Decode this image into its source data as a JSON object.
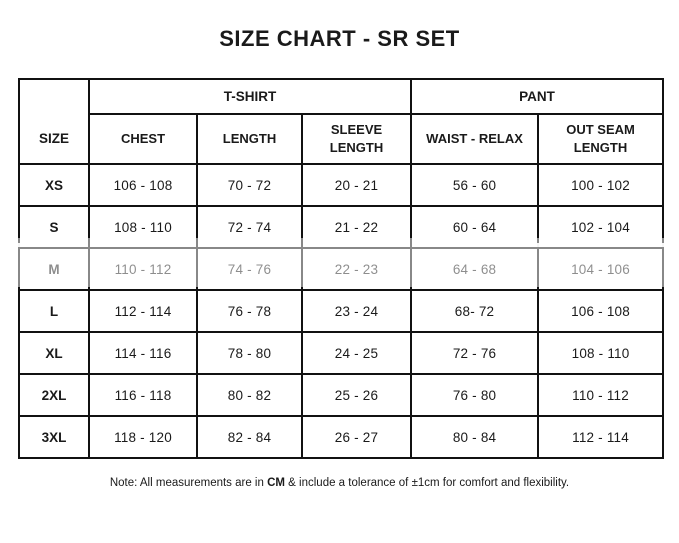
{
  "page": {
    "title": "SIZE CHART - SR SET"
  },
  "table": {
    "size_header": "SIZE",
    "col_groups": [
      {
        "label": "T-SHIRT",
        "span": 3
      },
      {
        "label": "PANT",
        "span": 2
      }
    ],
    "columns": [
      "CHEST",
      "LENGTH",
      "SLEEVE\nLENGTH",
      "WAIST - RELAX",
      "OUT SEAM\nLENGTH"
    ],
    "column_keys": [
      "chest",
      "length",
      "sleeve_length",
      "waist_relax",
      "out_seam_length"
    ],
    "rows": [
      {
        "size": "XS",
        "chest": "106 - 108",
        "length": "70 - 72",
        "sleeve_length": "20 - 21",
        "waist_relax": "56 - 60",
        "out_seam_length": "100 - 102"
      },
      {
        "size": "S",
        "chest": "108 - 110",
        "length": "72 - 74",
        "sleeve_length": "21 - 22",
        "waist_relax": "60 - 64",
        "out_seam_length": "102 - 104"
      },
      {
        "size": "M",
        "chest": "110 - 112",
        "length": "74 - 76",
        "sleeve_length": "22 - 23",
        "waist_relax": "64 - 68",
        "out_seam_length": "104 - 106"
      },
      {
        "size": "L",
        "chest": "112 - 114",
        "length": "76 - 78",
        "sleeve_length": "23 - 24",
        "waist_relax": "68- 72",
        "out_seam_length": "106 - 108"
      },
      {
        "size": "XL",
        "chest": "114 - 116",
        "length": "78 - 80",
        "sleeve_length": "24 - 25",
        "waist_relax": "72 - 76",
        "out_seam_length": "108 - 110"
      },
      {
        "size": "2XL",
        "chest": "116 - 118",
        "length": "80 - 82",
        "sleeve_length": "25 - 26",
        "waist_relax": "76 - 80",
        "out_seam_length": "110 - 112"
      },
      {
        "size": "3XL",
        "chest": "118 - 120",
        "length": "82 - 84",
        "sleeve_length": "26 - 27",
        "waist_relax": "80 - 84",
        "out_seam_length": "112 - 114"
      }
    ]
  },
  "note": {
    "prefix": "Note: All measurements are in ",
    "unit": "CM",
    "suffix": " & include a tolerance of ±1cm for comfort and flexibility."
  },
  "colors": {
    "text": "#1a1a1a",
    "border": "#111111",
    "background": "#ffffff"
  }
}
